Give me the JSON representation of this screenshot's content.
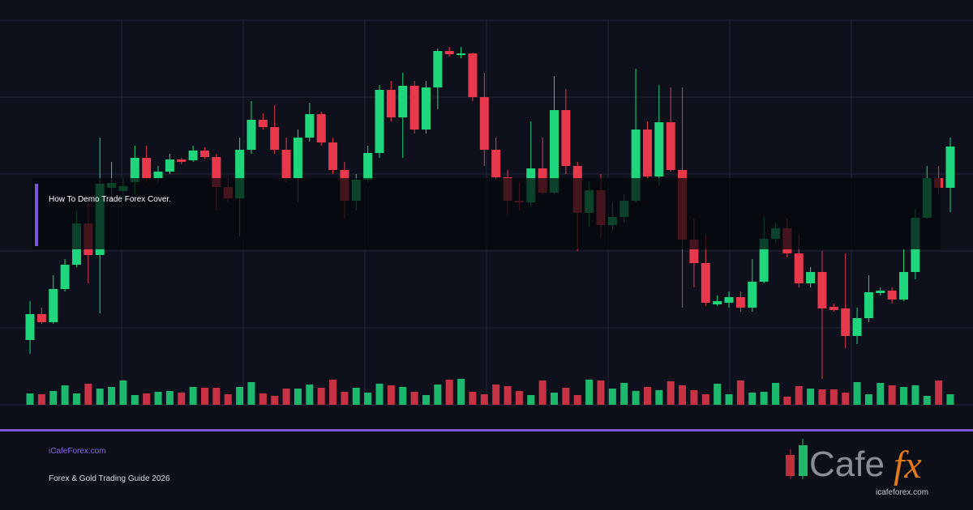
{
  "chart_data": {
    "type": "candlestick",
    "open": [
      80,
      112,
      102,
      143,
      173,
      224,
      185,
      268,
      264,
      275,
      305,
      280,
      288,
      303,
      302,
      314,
      306,
      269,
      255,
      315,
      352,
      343,
      315,
      280,
      330,
      359,
      324,
      290,
      252,
      278,
      311,
      389,
      355,
      394,
      340,
      392,
      437,
      432,
      434,
      380,
      315,
      281,
      252,
      250,
      292,
      262,
      364,
      295,
      237,
      265,
      222,
      232,
      252,
      340,
      282,
      349,
      290,
      204,
      175,
      124,
      126,
      133,
      120,
      152,
      205,
      218,
      187,
      150,
      164,
      121,
      119,
      85,
      107,
      138,
      141,
      130,
      164,
      231,
      280,
      268
    ],
    "high": [
      128,
      120,
      160,
      180,
      240,
      250,
      330,
      300,
      280,
      320,
      320,
      295,
      310,
      305,
      320,
      318,
      310,
      280,
      330,
      375,
      360,
      370,
      330,
      340,
      373,
      362,
      330,
      300,
      285,
      320,
      395,
      400,
      410,
      400,
      400,
      440,
      442,
      442,
      435,
      410,
      330,
      290,
      275,
      350,
      330,
      406,
      390,
      300,
      275,
      285,
      250,
      260,
      415,
      350,
      395,
      392,
      392,
      230,
      210,
      135,
      140,
      140,
      180,
      232,
      225,
      230,
      210,
      170,
      190,
      125,
      187,
      120,
      160,
      145,
      145,
      192,
      242,
      295,
      295,
      330
    ],
    "low": [
      63,
      100,
      100,
      140,
      170,
      150,
      113,
      250,
      255,
      260,
      275,
      275,
      285,
      297,
      300,
      304,
      240,
      250,
      208,
      310,
      340,
      310,
      275,
      250,
      325,
      320,
      285,
      230,
      240,
      275,
      305,
      350,
      305,
      335,
      335,
      365,
      430,
      428,
      375,
      295,
      278,
      235,
      240,
      245,
      260,
      260,
      285,
      190,
      220,
      205,
      215,
      225,
      250,
      280,
      270,
      288,
      120,
      145,
      122,
      122,
      120,
      115,
      115,
      150,
      200,
      182,
      145,
      145,
      32,
      115,
      70,
      75,
      102,
      135,
      125,
      128,
      155,
      230,
      260,
      238
    ],
    "close": [
      112,
      102,
      143,
      173,
      224,
      185,
      273,
      274,
      270,
      305,
      280,
      288,
      303,
      300,
      314,
      306,
      269,
      255,
      315,
      352,
      343,
      315,
      280,
      330,
      359,
      324,
      290,
      252,
      278,
      311,
      389,
      355,
      394,
      340,
      392,
      437,
      433,
      434,
      380,
      315,
      281,
      252,
      250,
      292,
      262,
      364,
      295,
      237,
      265,
      222,
      232,
      252,
      340,
      282,
      349,
      290,
      204,
      175,
      126,
      128,
      133,
      120,
      152,
      205,
      218,
      187,
      150,
      164,
      119,
      117,
      85,
      107,
      139,
      141,
      130,
      164,
      231,
      280,
      268,
      319
    ],
    "volume": [
      14,
      13,
      17,
      24,
      14,
      26,
      20,
      22,
      30,
      12,
      14,
      16,
      17,
      15,
      22,
      21,
      21,
      13,
      22,
      28,
      14,
      11,
      20,
      20,
      25,
      21,
      31,
      16,
      21,
      15,
      26,
      24,
      22,
      16,
      12,
      25,
      31,
      32,
      16,
      13,
      25,
      23,
      17,
      12,
      30,
      15,
      21,
      12,
      31,
      30,
      20,
      27,
      17,
      22,
      18,
      29,
      24,
      18,
      13,
      26,
      13,
      30,
      15,
      16,
      27,
      10,
      23,
      20,
      19,
      19,
      15,
      28,
      13,
      27,
      24,
      22,
      24,
      11,
      30,
      13
    ],
    "ylim": [
      0,
      475
    ],
    "volume_ylim": [
      0,
      475
    ],
    "up_color": "#1fd67c",
    "down_color": "#e8394c"
  },
  "overlay": {
    "title": "How To Demo Trade Forex Cover."
  },
  "footer": {
    "site": "iCafeForex.com",
    "tagline": "Forex & Gold Trading Guide 2026"
  },
  "logo": {
    "word": "Cafe",
    "mark": "fx",
    "url": "icafeforex.com"
  }
}
